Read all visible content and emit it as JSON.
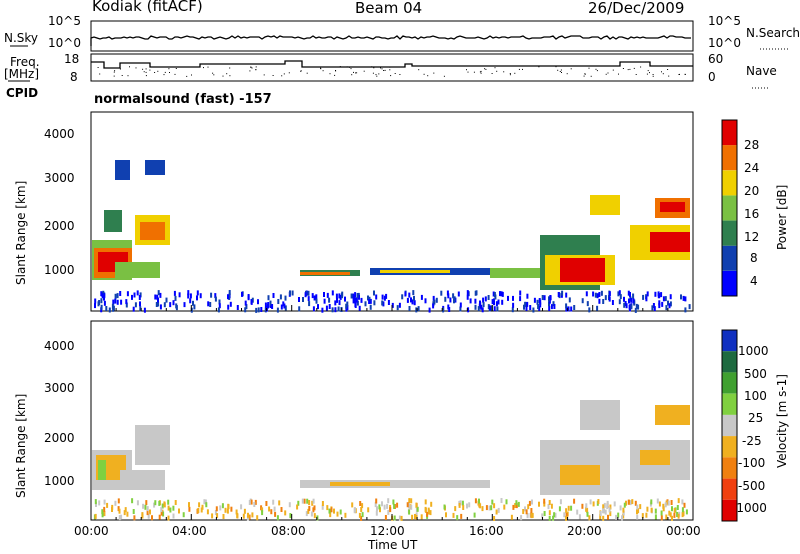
{
  "header": {
    "station": "Kodiak (fitACF)",
    "beam": "Beam 04",
    "date": "26/Dec/2009"
  },
  "left_labels": {
    "nsky": "N.Sky",
    "freq_top": "Freq.",
    "freq_unit": "[MHz]",
    "cpid": "CPID"
  },
  "right_labels": {
    "nsearch": "N.Search",
    "nave": "Nave"
  },
  "nsky_ticks": [
    "10^5",
    "10^0"
  ],
  "nsearch_ticks": [
    "10^5",
    "10^0"
  ],
  "freq_ticks": [
    "18",
    "8"
  ],
  "nave_ticks": [
    "60",
    "0"
  ],
  "cpid_text": "normalsound (fast) -157",
  "chart_data": [
    {
      "type": "heatmap",
      "name": "power",
      "ylabel": "Slant Range [km]",
      "yticks": [
        1000,
        2000,
        3000,
        4000
      ],
      "ylim": [
        200,
        4600
      ],
      "colorbar_label": "Power [dB]",
      "colorbar_ticks": [
        "4",
        "8",
        "12",
        "16",
        "20",
        "24",
        "28"
      ],
      "colors": [
        "#0000ff",
        "#1040b0",
        "#2f7f4f",
        "#7ac043",
        "#f0d000",
        "#f07000",
        "#e00000"
      ]
    },
    {
      "type": "heatmap",
      "name": "velocity",
      "ylabel": "Slant Range [km]",
      "yticks": [
        1000,
        2000,
        3000,
        4000
      ],
      "ylim": [
        200,
        4600
      ],
      "colorbar_label": "Velocity [m s-1]",
      "colorbar_ticks": [
        "1000",
        "500",
        "100",
        "25",
        "-25",
        "-100",
        "-500",
        "-1000"
      ],
      "colors": [
        "#1030c0",
        "#1e6a40",
        "#40a030",
        "#80d040",
        "#c8c8c8",
        "#f0b020",
        "#f08010",
        "#f04010",
        "#e00000"
      ]
    }
  ],
  "x_axis": {
    "ticks": [
      "00:00",
      "04:00",
      "08:00",
      "12:00",
      "16:00",
      "20:00",
      "00:00"
    ],
    "label": "Time UT"
  }
}
